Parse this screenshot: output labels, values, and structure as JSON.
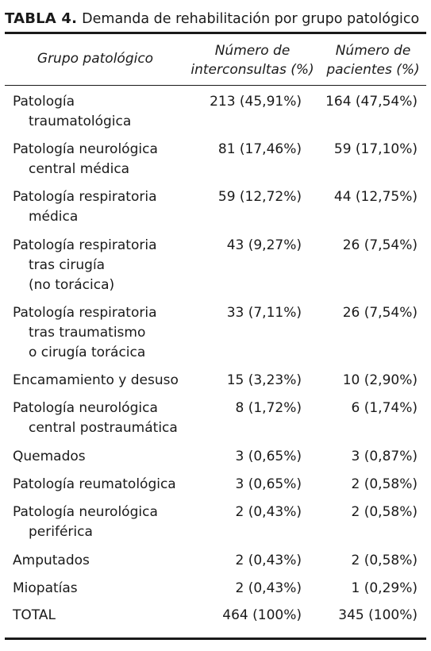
{
  "table": {
    "title_bold": "TABLA 4.",
    "title_rest": "Demanda de rehabilitación por grupo patológico",
    "headers": {
      "group": "Grupo patológico",
      "interconsultas": "Número de\ninterconsultas (%)",
      "pacientes": "Número de\npacientes (%)"
    },
    "rows": [
      {
        "label": [
          "Patología",
          "traumatológica"
        ],
        "interconsultas": "213 (45,91%)",
        "pacientes": "164 (47,54%)"
      },
      {
        "label": [
          "Patología neurológica",
          "central médica"
        ],
        "interconsultas": "81 (17,46%)",
        "pacientes": "59 (17,10%)"
      },
      {
        "label": [
          "Patología respiratoria",
          "médica"
        ],
        "interconsultas": "59 (12,72%)",
        "pacientes": "44 (12,75%)"
      },
      {
        "label": [
          "Patología respiratoria",
          "tras cirugía",
          "(no torácica)"
        ],
        "interconsultas": "43 (9,27%)",
        "pacientes": "26 (7,54%)"
      },
      {
        "label": [
          "Patología respiratoria",
          "tras traumatismo",
          "o cirugía torácica"
        ],
        "interconsultas": "33 (7,11%)",
        "pacientes": "26 (7,54%)"
      },
      {
        "label": [
          "Encamamiento y desuso"
        ],
        "interconsultas": "15 (3,23%)",
        "pacientes": "10 (2,90%)"
      },
      {
        "label": [
          "Patología neurológica",
          "central postraumática"
        ],
        "interconsultas": "8 (1,72%)",
        "pacientes": "6 (1,74%)"
      },
      {
        "label": [
          "Quemados"
        ],
        "interconsultas": "3 (0,65%)",
        "pacientes": "3 (0,87%)"
      },
      {
        "label": [
          "Patología reumatológica"
        ],
        "interconsultas": "3 (0,65%)",
        "pacientes": "2 (0,58%)"
      },
      {
        "label": [
          "Patología neurológica",
          "periférica"
        ],
        "interconsultas": "2 (0,43%)",
        "pacientes": "2 (0,58%)"
      },
      {
        "label": [
          "Amputados"
        ],
        "interconsultas": "2 (0,43%)",
        "pacientes": "2 (0,58%)"
      },
      {
        "label": [
          "Miopatías"
        ],
        "interconsultas": "2 (0,43%)",
        "pacientes": "1 (0,29%)"
      },
      {
        "label": [
          "TOTAL"
        ],
        "interconsultas": "464 (100%)",
        "pacientes": "345 (100%)"
      }
    ]
  }
}
